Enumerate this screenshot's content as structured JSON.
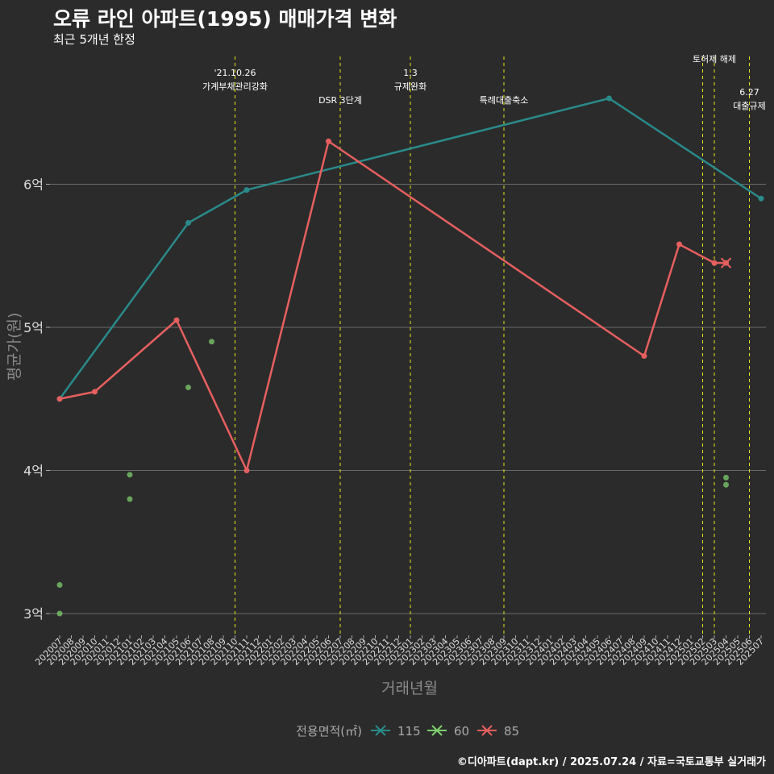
{
  "title": "오류 라인 아파트(1995) 매매가격 변화",
  "subtitle": "최근 5개년 한정",
  "caption": "©디아파트(dapt.kr) / 2025.07.24 / 자료=국토교통부 실거래가",
  "chart_data": {
    "type": "line",
    "xlabel": "거래년월",
    "ylabel": "평균가(원)",
    "ylim": [
      2.85,
      6.9
    ],
    "y_ticks": [
      {
        "value": 3,
        "label": "3억"
      },
      {
        "value": 4,
        "label": "4억"
      },
      {
        "value": 5,
        "label": "5억"
      },
      {
        "value": 6,
        "label": "6억"
      }
    ],
    "grid": true,
    "x_categories": [
      "202007",
      "202008",
      "202009",
      "202010",
      "202011",
      "202012",
      "202101",
      "202102",
      "202103",
      "202104",
      "202105",
      "202106",
      "202107",
      "202108",
      "202109",
      "202110",
      "202111",
      "202112",
      "202201",
      "202202",
      "202203",
      "202204",
      "202205",
      "202206",
      "202207",
      "202208",
      "202209",
      "202210",
      "202211",
      "202212",
      "202301",
      "202302",
      "202303",
      "202304",
      "202305",
      "202306",
      "202307",
      "202308",
      "202309",
      "202310",
      "202311",
      "202312",
      "202401",
      "202402",
      "202403",
      "202404",
      "202405",
      "202406",
      "202407",
      "202408",
      "202409",
      "202410",
      "202411",
      "202412",
      "202501",
      "202502",
      "202503",
      "202504",
      "202505",
      "202506",
      "202507"
    ],
    "legend": {
      "title": "전용면적(㎡)",
      "placement": "bottom",
      "items": [
        {
          "label": "115",
          "color": "#2a8a8a"
        },
        {
          "label": "60",
          "color": "#7ecf6e"
        },
        {
          "label": "85",
          "color": "#e65f5f"
        }
      ]
    },
    "series": [
      {
        "name": "115",
        "color": "#2a8a8a",
        "line": true,
        "points": [
          {
            "x": "202007",
            "y": 4.5
          },
          {
            "x": "202106",
            "y": 5.73
          },
          {
            "x": "202111",
            "y": 5.96
          },
          {
            "x": "202406",
            "y": 6.6
          },
          {
            "x": "202507",
            "y": 5.9
          }
        ]
      },
      {
        "name": "60",
        "color": "#7ecf6e",
        "line": false,
        "points": [
          {
            "x": "202007",
            "y": 3.0
          },
          {
            "x": "202007",
            "y": 3.2
          },
          {
            "x": "202101",
            "y": 3.8
          },
          {
            "x": "202101",
            "y": 3.97
          },
          {
            "x": "202106",
            "y": 4.58
          },
          {
            "x": "202108",
            "y": 4.9
          },
          {
            "x": "202504",
            "y": 3.9
          },
          {
            "x": "202504",
            "y": 3.95
          }
        ]
      },
      {
        "name": "85",
        "color": "#e65f5f",
        "line": true,
        "points": [
          {
            "x": "202007",
            "y": 4.5
          },
          {
            "x": "202010",
            "y": 4.55
          },
          {
            "x": "202105",
            "y": 5.05
          },
          {
            "x": "202111",
            "y": 4.0
          },
          {
            "x": "202206",
            "y": 6.3
          },
          {
            "x": "202409",
            "y": 4.8
          },
          {
            "x": "202412",
            "y": 5.58
          },
          {
            "x": "202503",
            "y": 5.45
          },
          {
            "x": "202504",
            "y": 5.45
          }
        ]
      }
    ],
    "annotations": [
      {
        "x": "202110",
        "lines": [
          "'21.10.26",
          "가계부채관리강화"
        ],
        "level": 1
      },
      {
        "x": "202207",
        "lines": [
          "DSR 3단계"
        ],
        "level": 2
      },
      {
        "x": "202301",
        "lines": [
          "1.3",
          "규제완화"
        ],
        "level": 1
      },
      {
        "x": "202309",
        "lines": [
          "특례대출축소"
        ],
        "level": 2
      },
      {
        "x": "202502",
        "lines": [],
        "level": 0
      },
      {
        "x": "202503",
        "lines": [
          "토허제 해제"
        ],
        "level": 0.5
      },
      {
        "x": "202506",
        "lines": [
          "6.27",
          "대출규제"
        ],
        "level": 1.7
      }
    ]
  }
}
